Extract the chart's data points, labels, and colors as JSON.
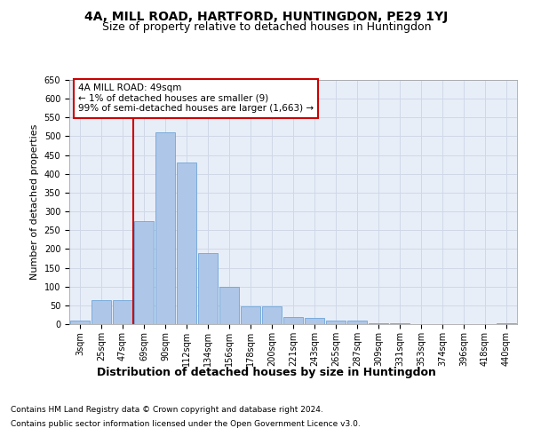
{
  "title": "4A, MILL ROAD, HARTFORD, HUNTINGDON, PE29 1YJ",
  "subtitle": "Size of property relative to detached houses in Huntingdon",
  "xlabel": "Distribution of detached houses by size in Huntingdon",
  "ylabel": "Number of detached properties",
  "categories": [
    "3sqm",
    "25sqm",
    "47sqm",
    "69sqm",
    "90sqm",
    "112sqm",
    "134sqm",
    "156sqm",
    "178sqm",
    "200sqm",
    "221sqm",
    "243sqm",
    "265sqm",
    "287sqm",
    "309sqm",
    "331sqm",
    "353sqm",
    "374sqm",
    "396sqm",
    "418sqm",
    "440sqm"
  ],
  "values": [
    10,
    65,
    65,
    275,
    510,
    430,
    190,
    100,
    47,
    47,
    20,
    17,
    10,
    10,
    3,
    3,
    0,
    0,
    0,
    0,
    3
  ],
  "bar_color": "#aec6e8",
  "bar_edge_color": "#5b9bd5",
  "annotation_box_text": "4A MILL ROAD: 49sqm\n← 1% of detached houses are smaller (9)\n99% of semi-detached houses are larger (1,663) →",
  "annotation_box_color": "#ffffff",
  "annotation_box_edge_color": "#cc0000",
  "vline_color": "#cc0000",
  "vline_x": 2.5,
  "grid_color": "#d0d8e8",
  "background_color": "#e8eef8",
  "ylim": [
    0,
    650
  ],
  "yticks": [
    0,
    50,
    100,
    150,
    200,
    250,
    300,
    350,
    400,
    450,
    500,
    550,
    600,
    650
  ],
  "footer_line1": "Contains HM Land Registry data © Crown copyright and database right 2024.",
  "footer_line2": "Contains public sector information licensed under the Open Government Licence v3.0.",
  "title_fontsize": 10,
  "subtitle_fontsize": 9,
  "xlabel_fontsize": 9,
  "ylabel_fontsize": 8,
  "tick_fontsize": 7,
  "annotation_fontsize": 7.5,
  "footer_fontsize": 6.5
}
